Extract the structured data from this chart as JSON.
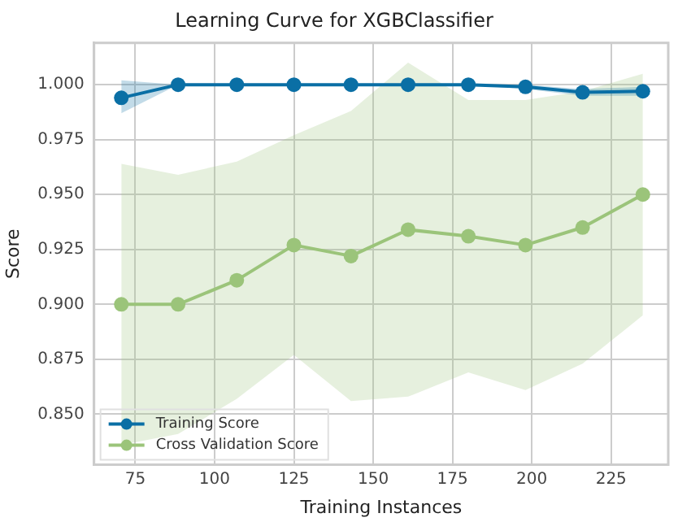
{
  "chart_data": {
    "type": "line",
    "title": "Learning Curve for XGBClassifier",
    "xlabel": "Training Instances",
    "ylabel": "Score",
    "x": [
      70.6,
      88.5,
      107,
      125,
      143,
      161,
      180,
      198,
      216,
      235
    ],
    "series": [
      {
        "name": "Training Score",
        "color": "#0a6fa5",
        "values": [
          0.994,
          1.0,
          1.0,
          1.0,
          1.0,
          1.0,
          1.0,
          0.999,
          0.9965,
          0.997
        ],
        "lower": [
          0.987,
          1.0,
          1.0,
          1.0,
          1.0,
          1.0,
          1.0,
          0.998,
          0.995,
          0.995
        ],
        "upper": [
          1.002,
          1.0,
          1.0,
          1.0,
          1.0,
          1.0,
          1.0,
          1.0,
          0.998,
          0.999
        ]
      },
      {
        "name": "Cross Validation Score",
        "color": "#9bc47a",
        "values": [
          0.9,
          0.9,
          0.911,
          0.927,
          0.922,
          0.934,
          0.931,
          0.927,
          0.935,
          0.95
        ],
        "lower": [
          0.836,
          0.841,
          0.857,
          0.877,
          0.856,
          0.858,
          0.869,
          0.861,
          0.873,
          0.895
        ],
        "upper": [
          0.964,
          0.959,
          0.965,
          0.977,
          0.988,
          1.01,
          0.993,
          0.993,
          0.997,
          1.005
        ]
      }
    ],
    "xlim": [
      62,
      243
    ],
    "xticks": [
      75,
      100,
      125,
      150,
      175,
      200,
      225
    ],
    "ylim": [
      0.827,
      1.019
    ],
    "yticks": [
      {
        "value": 0.85,
        "label": "0.850"
      },
      {
        "value": 0.875,
        "label": "0.875"
      },
      {
        "value": 0.9,
        "label": "0.900"
      },
      {
        "value": 0.925,
        "label": "0.925"
      },
      {
        "value": 0.95,
        "label": "0.950"
      },
      {
        "value": 0.975,
        "label": "0.975"
      },
      {
        "value": 1.0,
        "label": "1.000"
      }
    ],
    "grid": true,
    "legend": "bottom left",
    "marker": "circle",
    "line_style": "solid"
  }
}
